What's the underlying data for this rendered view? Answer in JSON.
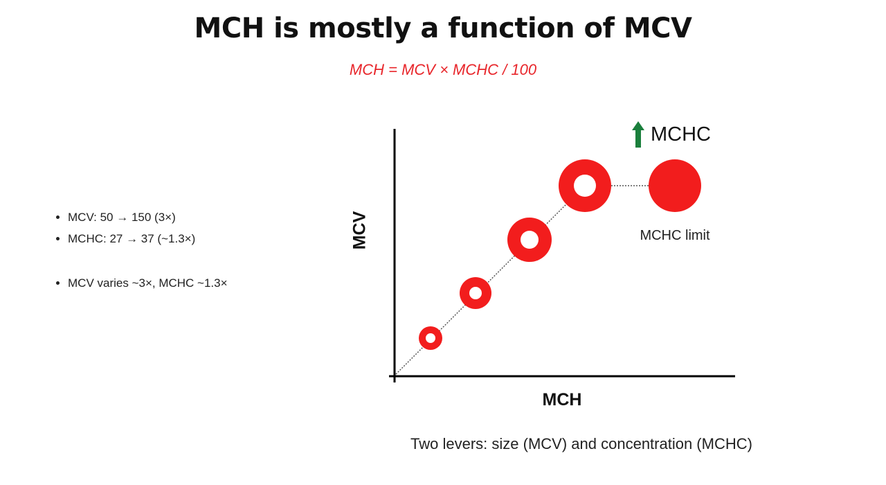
{
  "title": "MCH is mostly a function of MCV",
  "formula": "MCH = MCV × MCHC / 100",
  "bullets_group1": [
    "MCV: 50 → 150 (3×)",
    "MCHC: 27 → 37 (~1.3×)"
  ],
  "bullets_group2": [
    "MCV varies ~3×, MCHC ~1.3×"
  ],
  "diagram": {
    "y_axis_label": "MCV",
    "x_axis_label": "MCH",
    "mchc_indicator": {
      "icon": "arrow-up-icon",
      "label": "MCHC",
      "color": "#1a7f3c"
    },
    "limit_label": "MCHC limit",
    "cells": [
      {
        "type": "ring"
      },
      {
        "type": "ring"
      },
      {
        "type": "ring"
      },
      {
        "type": "ring"
      },
      {
        "type": "solid"
      }
    ],
    "cell_color": "#f21d1d"
  },
  "caption": "Two levers: size (MCV) and concentration (MCHC)"
}
